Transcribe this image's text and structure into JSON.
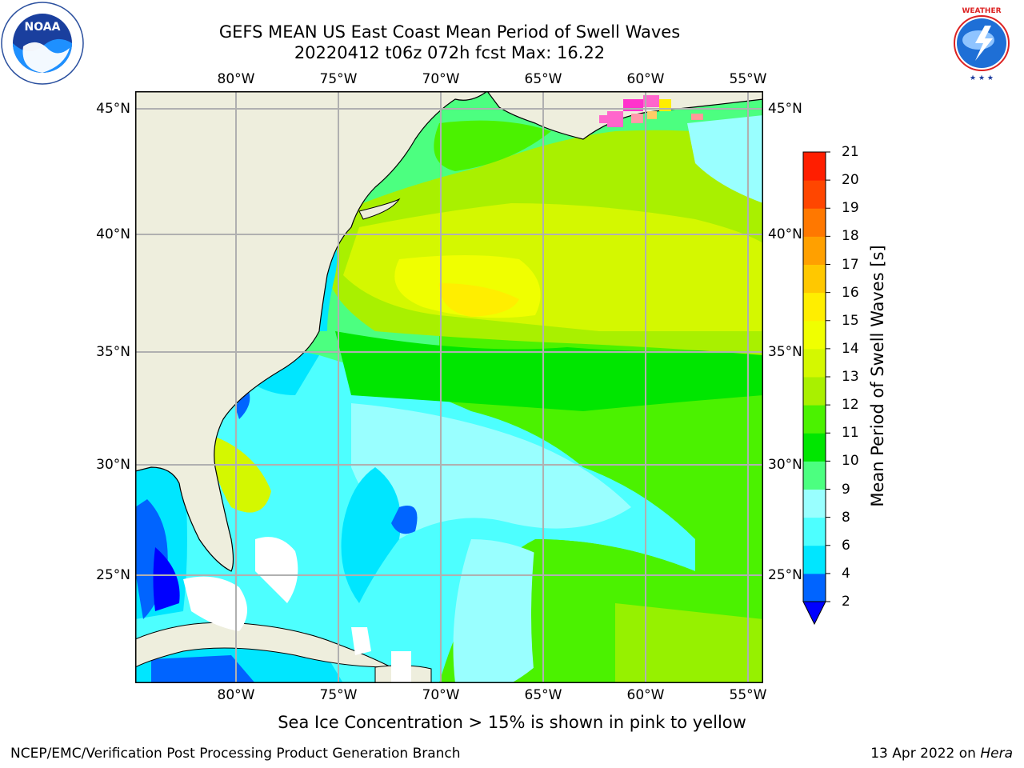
{
  "title": {
    "line1": "GEFS MEAN US East Coast Mean Period of Swell Waves",
    "line2": "20220412 t06z 072h fcst   Max: 16.22"
  },
  "logos": {
    "left": "NOAA",
    "left_ring_text": "NATIONAL OCEANIC AND ATMOSPHERIC ADMINISTRATION · U.S. DEPARTMENT OF COMMERCE",
    "right_ring_text": "NATIONAL WEATHER SERVICE"
  },
  "map": {
    "lon_labels": [
      "80°W",
      "75°W",
      "70°W",
      "65°W",
      "60°W",
      "55°W"
    ],
    "lat_labels": [
      "45°N",
      "40°N",
      "35°N",
      "30°N",
      "25°N"
    ],
    "land_color": "#eeeedd",
    "grid_color": "#b0b0b0"
  },
  "colorbar": {
    "title": "Mean Period of Swell Waves [s]",
    "ticks": [
      "2",
      "4",
      "6",
      "8",
      "9",
      "10",
      "11",
      "12",
      "13",
      "14",
      "15",
      "16",
      "17",
      "18",
      "19",
      "20",
      "21"
    ],
    "colors": [
      "#0064ff",
      "#00e6ff",
      "#4dffff",
      "#99ffff",
      "#4cff80",
      "#00e600",
      "#4bf200",
      "#a9f000",
      "#d4f800",
      "#f0ff00",
      "#ffee00",
      "#ffc800",
      "#ffa000",
      "#ff7800",
      "#ff4600",
      "#ff1e00"
    ],
    "extend_color": "#0000ff"
  },
  "note": "Sea Ice Concentration > 15% is shown in pink to yellow",
  "footer": {
    "left": "NCEP/EMC/Verification Post Processing Product Generation Branch",
    "right_date": "13 Apr 2022 on ",
    "right_host": "Hera"
  }
}
